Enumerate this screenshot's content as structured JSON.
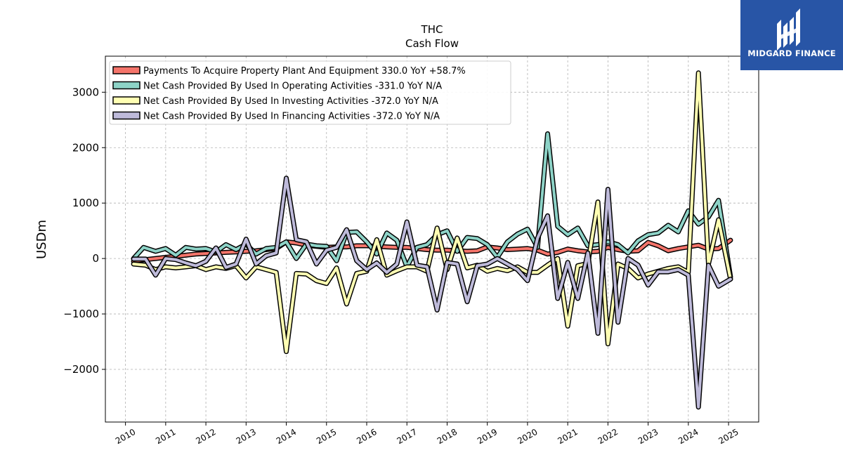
{
  "chart_data": {
    "type": "line",
    "title": "THC",
    "subtitle": "Cash Flow",
    "ylabel": "USDm",
    "xlabel": "",
    "ylim": [
      -2950,
      3650
    ],
    "xlim": [
      2009.5,
      2025.75
    ],
    "yticks": [
      -2000,
      -1000,
      0,
      1000,
      2000,
      3000
    ],
    "ytick_labels": [
      "−2000",
      "−1000",
      "0",
      "1000",
      "2000",
      "3000"
    ],
    "xticks": [
      2010,
      2011,
      2012,
      2013,
      2014,
      2015,
      2016,
      2017,
      2018,
      2019,
      2020,
      2021,
      2022,
      2023,
      2024,
      2025
    ],
    "xtick_labels": [
      "2010",
      "2011",
      "2012",
      "2013",
      "2014",
      "2015",
      "2016",
      "2017",
      "2018",
      "2019",
      "2020",
      "2021",
      "2022",
      "2023",
      "2024",
      "2025"
    ],
    "grid": true,
    "legend_position": "top-left",
    "series": [
      {
        "name": "Payments To Acquire Property Plant And Equipment  330.0 YoY +58.7%",
        "color": "#f4746a",
        "points": [
          [
            2010.2,
            -50
          ],
          [
            2010.5,
            -20
          ],
          [
            2010.75,
            0
          ],
          [
            2011,
            20
          ],
          [
            2011.25,
            40
          ],
          [
            2011.5,
            60
          ],
          [
            2011.75,
            80
          ],
          [
            2012,
            90
          ],
          [
            2012.25,
            100
          ],
          [
            2012.5,
            110
          ],
          [
            2012.75,
            120
          ],
          [
            2013,
            130
          ],
          [
            2013.25,
            140
          ],
          [
            2013.5,
            160
          ],
          [
            2013.75,
            180
          ],
          [
            2014,
            300
          ],
          [
            2014.25,
            280
          ],
          [
            2014.5,
            240
          ],
          [
            2014.75,
            220
          ],
          [
            2015,
            200
          ],
          [
            2015.25,
            210
          ],
          [
            2015.5,
            210
          ],
          [
            2015.75,
            230
          ],
          [
            2016,
            230
          ],
          [
            2016.25,
            220
          ],
          [
            2016.5,
            210
          ],
          [
            2016.75,
            200
          ],
          [
            2017,
            200
          ],
          [
            2017.25,
            180
          ],
          [
            2017.5,
            160
          ],
          [
            2017.75,
            150
          ],
          [
            2018,
            150
          ],
          [
            2018.25,
            140
          ],
          [
            2018.5,
            130
          ],
          [
            2018.75,
            140
          ],
          [
            2019,
            210
          ],
          [
            2019.25,
            190
          ],
          [
            2019.5,
            160
          ],
          [
            2019.75,
            170
          ],
          [
            2020,
            180
          ],
          [
            2020.25,
            150
          ],
          [
            2020.5,
            80
          ],
          [
            2020.75,
            110
          ],
          [
            2021,
            170
          ],
          [
            2021.25,
            140
          ],
          [
            2021.5,
            120
          ],
          [
            2021.75,
            130
          ],
          [
            2022,
            200
          ],
          [
            2022.25,
            160
          ],
          [
            2022.5,
            130
          ],
          [
            2022.75,
            140
          ],
          [
            2023,
            290
          ],
          [
            2023.25,
            230
          ],
          [
            2023.5,
            140
          ],
          [
            2023.75,
            180
          ],
          [
            2024,
            210
          ],
          [
            2024.25,
            240
          ],
          [
            2024.5,
            170
          ],
          [
            2024.75,
            180
          ],
          [
            2025.05,
            330
          ]
        ]
      },
      {
        "name": "Net Cash Provided By Used In Operating Activities  -331.0 YoY N/A",
        "color": "#8dd3c7",
        "points": [
          [
            2010.2,
            0
          ],
          [
            2010.45,
            200
          ],
          [
            2010.75,
            130
          ],
          [
            2011,
            180
          ],
          [
            2011.25,
            60
          ],
          [
            2011.5,
            200
          ],
          [
            2011.75,
            170
          ],
          [
            2012,
            180
          ],
          [
            2012.25,
            120
          ],
          [
            2012.5,
            250
          ],
          [
            2012.75,
            160
          ],
          [
            2013,
            260
          ],
          [
            2013.25,
            80
          ],
          [
            2013.5,
            180
          ],
          [
            2013.75,
            200
          ],
          [
            2014,
            300
          ],
          [
            2014.25,
            0
          ],
          [
            2014.5,
            260
          ],
          [
            2014.75,
            230
          ],
          [
            2015,
            220
          ],
          [
            2015.25,
            -40
          ],
          [
            2015.5,
            470
          ],
          [
            2015.75,
            480
          ],
          [
            2016,
            300
          ],
          [
            2016.25,
            80
          ],
          [
            2016.5,
            460
          ],
          [
            2016.75,
            330
          ],
          [
            2017,
            -150
          ],
          [
            2017.25,
            200
          ],
          [
            2017.5,
            250
          ],
          [
            2017.75,
            430
          ],
          [
            2018,
            500
          ],
          [
            2018.25,
            130
          ],
          [
            2018.5,
            380
          ],
          [
            2018.75,
            360
          ],
          [
            2019,
            250
          ],
          [
            2019.25,
            20
          ],
          [
            2019.5,
            300
          ],
          [
            2019.75,
            440
          ],
          [
            2020,
            530
          ],
          [
            2020.25,
            200
          ],
          [
            2020.5,
            2250
          ],
          [
            2020.75,
            580
          ],
          [
            2021,
            430
          ],
          [
            2021.25,
            550
          ],
          [
            2021.5,
            230
          ],
          [
            2021.75,
            250
          ],
          [
            2022,
            300
          ],
          [
            2022.25,
            250
          ],
          [
            2022.5,
            100
          ],
          [
            2022.75,
            320
          ],
          [
            2023,
            430
          ],
          [
            2023.25,
            460
          ],
          [
            2023.5,
            600
          ],
          [
            2023.75,
            480
          ],
          [
            2024,
            860
          ],
          [
            2024.25,
            620
          ],
          [
            2024.5,
            750
          ],
          [
            2024.75,
            1050
          ],
          [
            2025.05,
            -331
          ]
        ]
      },
      {
        "name": "Net Cash Provided By Used In Investing Activities  -372.0 YoY N/A",
        "color": "#ffffb3",
        "points": [
          [
            2010.2,
            -100
          ],
          [
            2010.5,
            -120
          ],
          [
            2010.75,
            -200
          ],
          [
            2011,
            -150
          ],
          [
            2011.25,
            -170
          ],
          [
            2011.5,
            -150
          ],
          [
            2011.75,
            -130
          ],
          [
            2012,
            -200
          ],
          [
            2012.25,
            -150
          ],
          [
            2012.5,
            -180
          ],
          [
            2012.75,
            -130
          ],
          [
            2013,
            -350
          ],
          [
            2013.25,
            -150
          ],
          [
            2013.5,
            -200
          ],
          [
            2013.75,
            -250
          ],
          [
            2014,
            -1680
          ],
          [
            2014.25,
            -270
          ],
          [
            2014.5,
            -280
          ],
          [
            2014.75,
            -400
          ],
          [
            2015,
            -450
          ],
          [
            2015.25,
            -170
          ],
          [
            2015.5,
            -820
          ],
          [
            2015.75,
            -270
          ],
          [
            2016,
            -230
          ],
          [
            2016.25,
            340
          ],
          [
            2016.5,
            -300
          ],
          [
            2016.75,
            -220
          ],
          [
            2017,
            -150
          ],
          [
            2017.25,
            -150
          ],
          [
            2017.5,
            -230
          ],
          [
            2017.75,
            550
          ],
          [
            2018,
            -200
          ],
          [
            2018.25,
            370
          ],
          [
            2018.5,
            -170
          ],
          [
            2018.75,
            -120
          ],
          [
            2019,
            -230
          ],
          [
            2019.25,
            -180
          ],
          [
            2019.5,
            -220
          ],
          [
            2019.75,
            -150
          ],
          [
            2020,
            -250
          ],
          [
            2020.25,
            -250
          ],
          [
            2020.5,
            -120
          ],
          [
            2020.75,
            0
          ],
          [
            2021,
            -1220
          ],
          [
            2021.25,
            -130
          ],
          [
            2021.5,
            -90
          ],
          [
            2021.75,
            1020
          ],
          [
            2022,
            -1540
          ],
          [
            2022.25,
            -100
          ],
          [
            2022.5,
            -180
          ],
          [
            2022.75,
            -350
          ],
          [
            2023,
            -280
          ],
          [
            2023.25,
            -230
          ],
          [
            2023.5,
            -180
          ],
          [
            2023.75,
            -150
          ],
          [
            2024,
            -250
          ],
          [
            2024.25,
            3350
          ],
          [
            2024.5,
            -100
          ],
          [
            2024.75,
            700
          ],
          [
            2025.05,
            -372
          ]
        ]
      },
      {
        "name": "Net Cash Provided By Used In Financing Activities  -372.0 YoY N/A",
        "color": "#bebada",
        "points": [
          [
            2010.2,
            -10
          ],
          [
            2010.5,
            -10
          ],
          [
            2010.75,
            -300
          ],
          [
            2011,
            0
          ],
          [
            2011.25,
            -20
          ],
          [
            2011.5,
            -80
          ],
          [
            2011.75,
            -130
          ],
          [
            2012,
            -50
          ],
          [
            2012.25,
            190
          ],
          [
            2012.5,
            -160
          ],
          [
            2012.75,
            -100
          ],
          [
            2013,
            350
          ],
          [
            2013.25,
            -100
          ],
          [
            2013.5,
            50
          ],
          [
            2013.75,
            100
          ],
          [
            2014,
            1450
          ],
          [
            2014.25,
            340
          ],
          [
            2014.5,
            300
          ],
          [
            2014.75,
            -100
          ],
          [
            2015,
            150
          ],
          [
            2015.25,
            200
          ],
          [
            2015.5,
            520
          ],
          [
            2015.75,
            -40
          ],
          [
            2016,
            -200
          ],
          [
            2016.25,
            -80
          ],
          [
            2016.5,
            -250
          ],
          [
            2016.75,
            -100
          ],
          [
            2017,
            660
          ],
          [
            2017.25,
            -120
          ],
          [
            2017.5,
            -150
          ],
          [
            2017.75,
            -930
          ],
          [
            2018,
            -70
          ],
          [
            2018.25,
            -100
          ],
          [
            2018.5,
            -780
          ],
          [
            2018.75,
            -130
          ],
          [
            2019,
            -100
          ],
          [
            2019.25,
            0
          ],
          [
            2019.5,
            -100
          ],
          [
            2019.75,
            -200
          ],
          [
            2020,
            -400
          ],
          [
            2020.25,
            370
          ],
          [
            2020.5,
            770
          ],
          [
            2020.75,
            -720
          ],
          [
            2021,
            -70
          ],
          [
            2021.25,
            -720
          ],
          [
            2021.5,
            100
          ],
          [
            2021.75,
            -1350
          ],
          [
            2022,
            1250
          ],
          [
            2022.25,
            -1150
          ],
          [
            2022.5,
            0
          ],
          [
            2022.75,
            -120
          ],
          [
            2023,
            -480
          ],
          [
            2023.25,
            -240
          ],
          [
            2023.5,
            -240
          ],
          [
            2023.75,
            -200
          ],
          [
            2024,
            -300
          ],
          [
            2024.25,
            -2680
          ],
          [
            2024.5,
            -120
          ],
          [
            2024.75,
            -500
          ],
          [
            2025.05,
            -372
          ]
        ]
      }
    ]
  },
  "branding": {
    "logo_text": "MIDGARD FINANCE",
    "logo_bg": "#2855a6"
  }
}
